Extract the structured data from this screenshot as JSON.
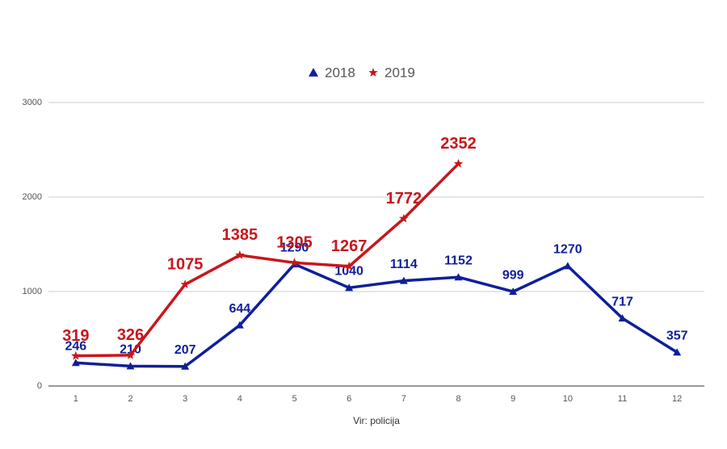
{
  "chart_data": {
    "type": "line",
    "categories": [
      "1",
      "2",
      "3",
      "4",
      "5",
      "6",
      "7",
      "8",
      "9",
      "10",
      "11",
      "12"
    ],
    "series": [
      {
        "name": "2018",
        "color": "#0f1f9a",
        "marker": "triangle",
        "values": [
          246,
          210,
          207,
          644,
          1290,
          1040,
          1114,
          1152,
          999,
          1270,
          717,
          357
        ]
      },
      {
        "name": "2019",
        "color": "#c8161d",
        "marker": "star",
        "values": [
          319,
          326,
          1075,
          1385,
          1305,
          1267,
          1772,
          2352,
          null,
          null,
          null,
          null
        ]
      }
    ],
    "ylim": [
      0,
      3000
    ],
    "yticks": [
      0,
      1000,
      2000,
      3000
    ],
    "grid": true,
    "legend": "top",
    "x_label": "Vir: policija"
  }
}
